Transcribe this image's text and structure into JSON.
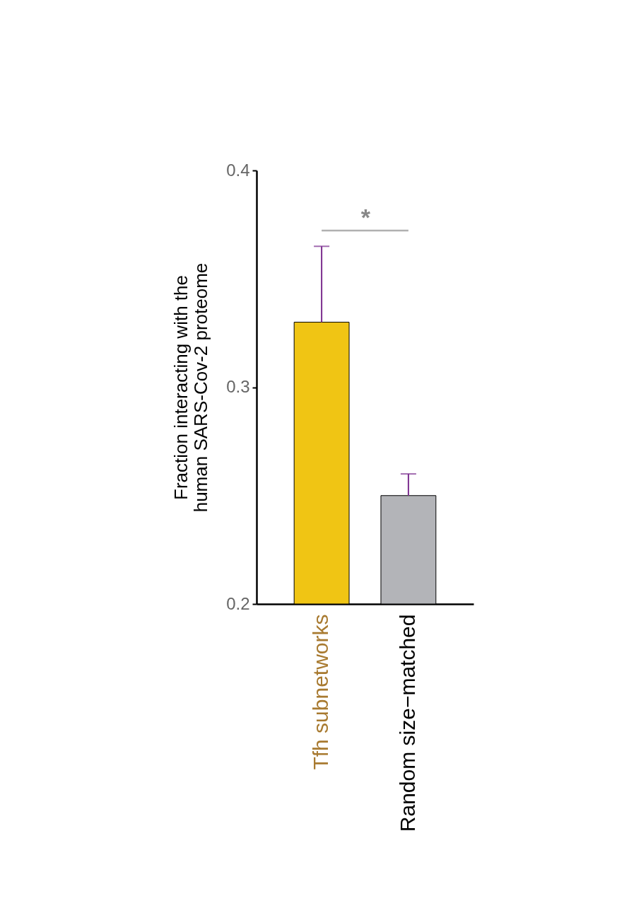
{
  "chart_data": {
    "type": "bar",
    "ylabel": "Fraction interacting with the human SARS-Cov-2 proteome",
    "categories": [
      "Tfh subnetworks",
      "Random size−matched"
    ],
    "values": [
      0.33,
      0.25
    ],
    "colors": [
      "#f0c514",
      "#b3b4b8"
    ],
    "errors": [
      [
        0.33,
        0.365
      ],
      [
        0.25,
        0.26
      ]
    ],
    "ylim": [
      0.2,
      0.4
    ],
    "yticks": [
      0.2,
      0.3,
      0.4
    ],
    "annotations": [
      "*"
    ],
    "grid": false,
    "legend": false
  }
}
